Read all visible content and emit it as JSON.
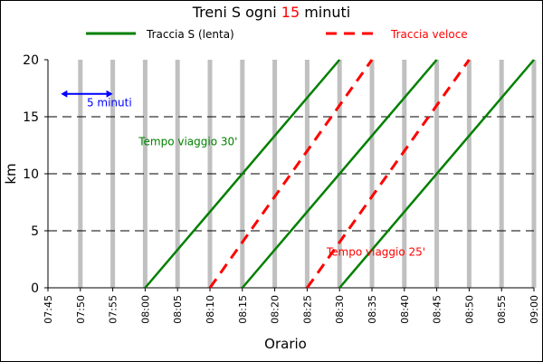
{
  "chart_data": {
    "type": "line",
    "title_parts": [
      "Treni S ogni ",
      "15",
      " minuti"
    ],
    "colors": {
      "slow": "#008000",
      "fast": "#ff0000",
      "bars": "#c0c0c0",
      "highlight": "#ff0000",
      "interval_annotation": "#0000ff"
    },
    "xlabel": "Orario",
    "ylabel": "km",
    "ylim": [
      0,
      20
    ],
    "yticks": [
      "0",
      "5",
      "10",
      "15",
      "20"
    ],
    "xlim": [
      "07:45",
      "09:00"
    ],
    "xticks": [
      "07:45",
      "07:50",
      "07:55",
      "08:00",
      "08:05",
      "08:10",
      "08:15",
      "08:20",
      "08:25",
      "08:30",
      "08:35",
      "08:40",
      "08:45",
      "08:50",
      "08:55",
      "09:00"
    ],
    "grid": {
      "horizontal_dashed": true,
      "vertical_bars_every_minutes": 5
    },
    "legend": {
      "placement": "top",
      "slow_label": "Traccia S (lenta)",
      "fast_label": "Traccia veloce"
    },
    "series": [
      {
        "name": "Traccia S (lenta)",
        "style": "solid",
        "lines": [
          {
            "x": [
              "08:00",
              "08:30"
            ],
            "y": [
              0,
              20
            ]
          },
          {
            "x": [
              "08:15",
              "08:45"
            ],
            "y": [
              0,
              20
            ]
          },
          {
            "x": [
              "08:30",
              "09:00"
            ],
            "y": [
              0,
              20
            ]
          }
        ]
      },
      {
        "name": "Traccia veloce",
        "style": "dashed",
        "lines": [
          {
            "x": [
              "08:10",
              "08:35"
            ],
            "y": [
              0,
              20
            ]
          },
          {
            "x": [
              "08:25",
              "08:50"
            ],
            "y": [
              0,
              20
            ]
          }
        ]
      }
    ],
    "annotations": [
      {
        "text": "5 minuti",
        "x": "07:51",
        "y": 15.9
      },
      {
        "text": "Tempo viaggio 30'",
        "x": "07:59",
        "y": 12.5
      },
      {
        "text": "Tempo viaggio 25'",
        "x": "08:28",
        "y": 2.8
      }
    ],
    "interval_arrow": {
      "x": [
        "07:47",
        "07:55"
      ],
      "y": 17.0
    }
  }
}
